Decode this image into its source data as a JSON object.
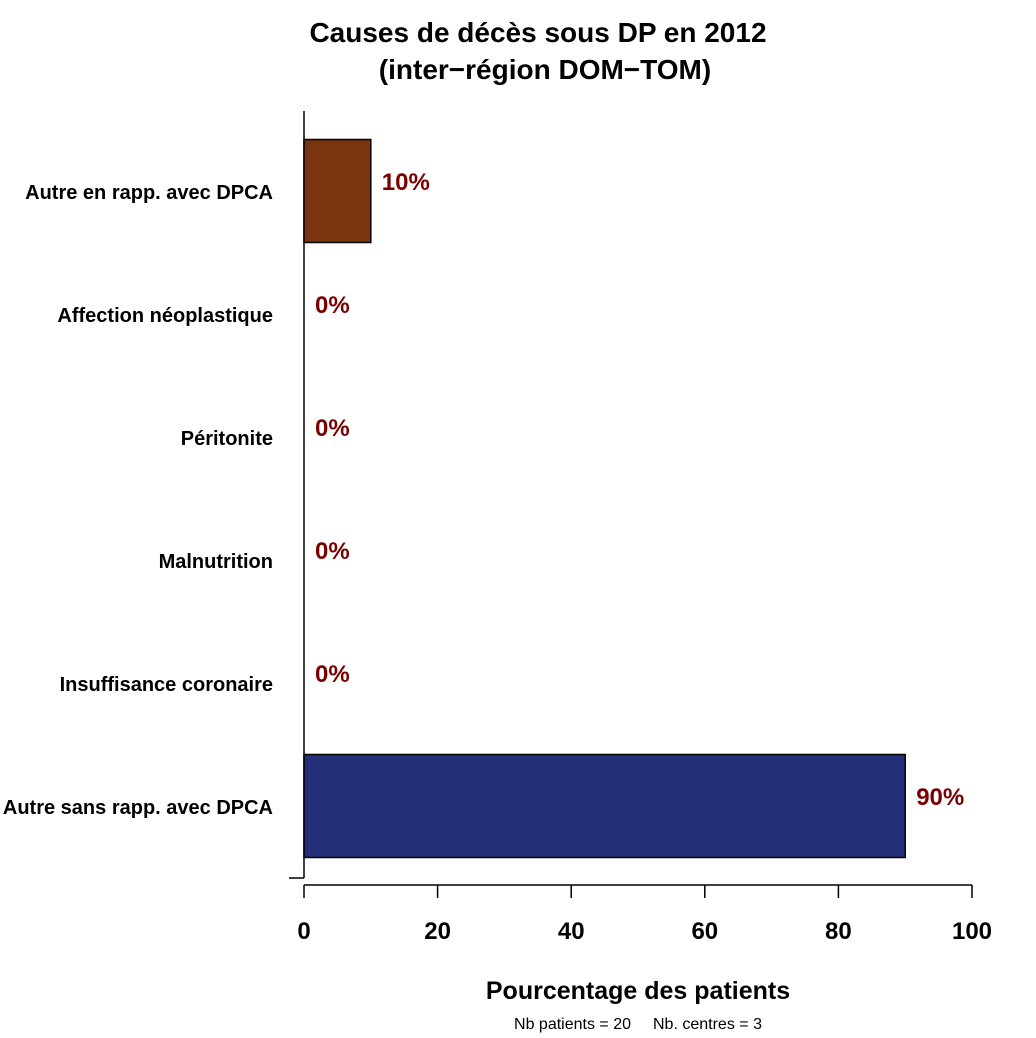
{
  "chart_data": {
    "type": "bar",
    "orientation": "horizontal",
    "title": [
      "Causes de décès sous DP en 2012",
      "(inter−région DOM−TOM)"
    ],
    "xlabel": "Pourcentage des patients",
    "ylabel": "",
    "xlim": [
      0,
      100
    ],
    "x_ticks": [
      0,
      20,
      40,
      60,
      80,
      100
    ],
    "categories": [
      "Autre en rapp. avec DPCA",
      "Affection néoplastique",
      "Péritonite",
      "Malnutrition",
      "Insuffisance coronaire",
      "Autre sans rapp. avec DPCA"
    ],
    "values": [
      10,
      0,
      0,
      0,
      0,
      90
    ],
    "value_labels": [
      "10%",
      "0%",
      "0%",
      "0%",
      "0%",
      "90%"
    ],
    "bar_colors": [
      "#7a340f",
      "#7a340f",
      "#7a340f",
      "#7a340f",
      "#7a340f",
      "#232f78"
    ],
    "value_label_color": "#7a0000",
    "grid": false,
    "legend": "none",
    "footnote": {
      "patients_label": "Nb patients =",
      "patients_value": "20",
      "centres_label": "Nb. centres =",
      "centres_value": "3"
    }
  }
}
